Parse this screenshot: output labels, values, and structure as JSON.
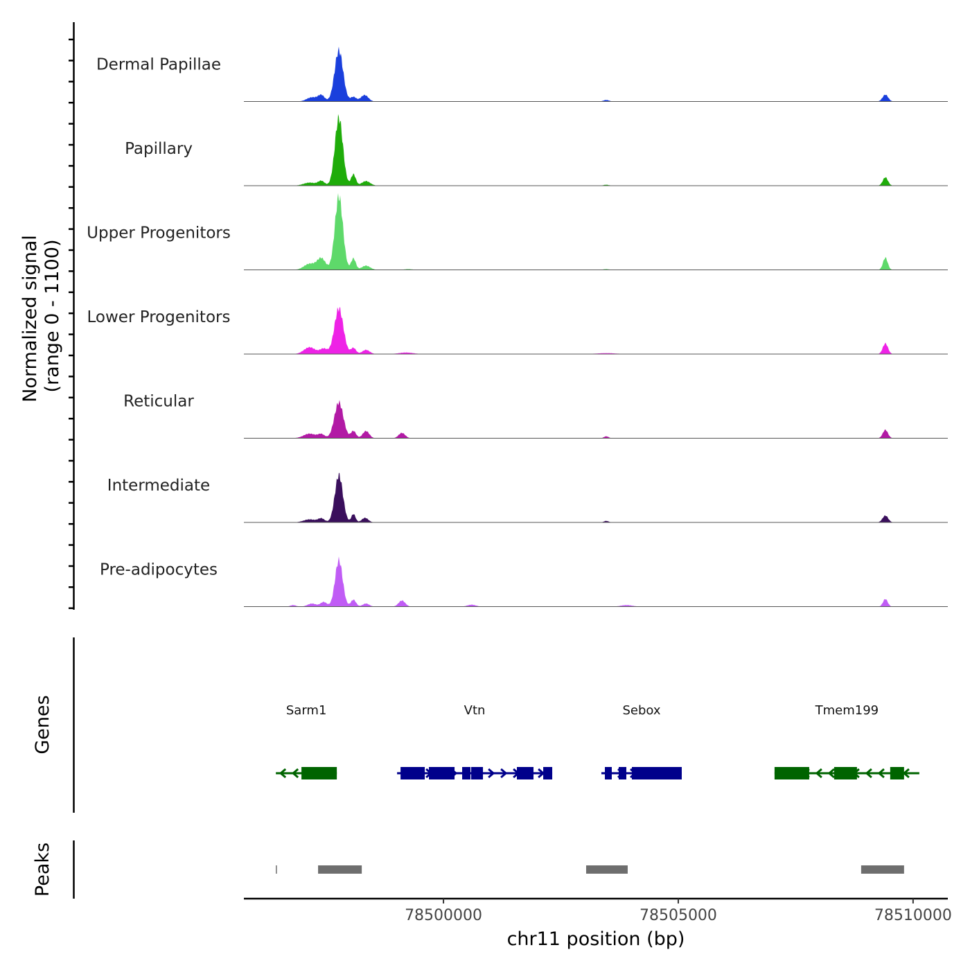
{
  "chart_data": {
    "type": "area",
    "title": "",
    "ylabel": "Normalized signal",
    "ylabel_range": "(range 0 - 1100)",
    "ylim": [
      0,
      1100
    ],
    "xlabel": "chr11 position (bp)",
    "xlim": [
      78495750,
      78510740
    ],
    "xticks": [
      78500000,
      78505000,
      78510000
    ],
    "xtick_labels": [
      "78500000",
      "78505000",
      "78510000"
    ],
    "tracks": [
      {
        "name": "Dermal Papillae",
        "color": "#1a3fdc",
        "peaks": [
          [
            78497773,
            670,
            90
          ],
          [
            78497198,
            55,
            110
          ],
          [
            78497400,
            80,
            70
          ],
          [
            78498083,
            60,
            60
          ],
          [
            78498320,
            85,
            80
          ],
          [
            78503466,
            20,
            60
          ],
          [
            78509410,
            90,
            60
          ]
        ]
      },
      {
        "name": "Papillary",
        "color": "#1fac0a",
        "peaks": [
          [
            78497773,
            890,
            85
          ],
          [
            78497150,
            40,
            130
          ],
          [
            78497400,
            60,
            70
          ],
          [
            78498083,
            150,
            50
          ],
          [
            78498350,
            60,
            90
          ],
          [
            78503466,
            12,
            60
          ],
          [
            78509410,
            110,
            55
          ]
        ]
      },
      {
        "name": "Upper Progenitors",
        "color": "#5ed96a",
        "peaks": [
          [
            78497773,
            965,
            85
          ],
          [
            78497150,
            80,
            120
          ],
          [
            78497400,
            150,
            90
          ],
          [
            78498083,
            150,
            50
          ],
          [
            78498350,
            55,
            90
          ],
          [
            78499250,
            10,
            80
          ],
          [
            78503466,
            10,
            60
          ],
          [
            78509410,
            160,
            50
          ]
        ]
      },
      {
        "name": "Lower Progenitors",
        "color": "#ee22e6",
        "peaks": [
          [
            78497773,
            600,
            95
          ],
          [
            78497150,
            90,
            120
          ],
          [
            78497450,
            70,
            80
          ],
          [
            78498083,
            80,
            55
          ],
          [
            78498350,
            55,
            80
          ],
          [
            78499200,
            20,
            150
          ],
          [
            78503466,
            12,
            200
          ],
          [
            78509410,
            140,
            55
          ]
        ]
      },
      {
        "name": "Reticular",
        "color": "#b21aa5",
        "peaks": [
          [
            78497773,
            470,
            95
          ],
          [
            78497150,
            60,
            130
          ],
          [
            78497400,
            50,
            70
          ],
          [
            78498083,
            95,
            55
          ],
          [
            78498350,
            95,
            70
          ],
          [
            78499115,
            70,
            70
          ],
          [
            78503466,
            25,
            50
          ],
          [
            78509410,
            110,
            55
          ]
        ]
      },
      {
        "name": "Intermediate",
        "color": "#3a0f5c",
        "peaks": [
          [
            78497773,
            620,
            85
          ],
          [
            78497150,
            40,
            130
          ],
          [
            78497400,
            50,
            70
          ],
          [
            78498083,
            110,
            45
          ],
          [
            78498330,
            60,
            70
          ],
          [
            78503466,
            20,
            50
          ],
          [
            78509410,
            90,
            60
          ]
        ]
      },
      {
        "name": "Pre-adipocytes",
        "color": "#c05cf5",
        "peaks": [
          [
            78497773,
            610,
            80
          ],
          [
            78496800,
            20,
            60
          ],
          [
            78497200,
            40,
            90
          ],
          [
            78497450,
            60,
            70
          ],
          [
            78498083,
            90,
            55
          ],
          [
            78498350,
            40,
            70
          ],
          [
            78499115,
            80,
            70
          ],
          [
            78500600,
            25,
            90
          ],
          [
            78503900,
            20,
            120
          ],
          [
            78509410,
            100,
            50
          ]
        ]
      }
    ],
    "genes_label": "Genes",
    "genes": [
      {
        "name": "Sarm1",
        "strand": "-",
        "color": "#006400",
        "start": 78496431,
        "end": 78497729,
        "exons": [
          [
            78496976,
            78497729
          ]
        ]
      },
      {
        "name": "Vtn",
        "strand": "+",
        "color": "#00008b",
        "start": 78499012,
        "end": 78502316,
        "exons": [
          [
            78499086,
            78499602
          ],
          [
            78499690,
            78500236
          ],
          [
            78500398,
            78500575
          ],
          [
            78500590,
            78500841
          ],
          [
            78501563,
            78501917
          ],
          [
            78502124,
            78502316
          ]
        ]
      },
      {
        "name": "Sebox",
        "strand": "+",
        "color": "#00008b",
        "start": 78503363,
        "end": 78505074,
        "exons": [
          [
            78503437,
            78503584
          ],
          [
            78503732,
            78503894
          ],
          [
            78504012,
            78505074
          ]
        ]
      },
      {
        "name": "Tmem199",
        "strand": "-",
        "color": "#006400",
        "start": 78507050,
        "end": 78510133,
        "exons": [
          [
            78507050,
            78507788
          ],
          [
            78508319,
            78508805
          ],
          [
            78509513,
            78509808
          ]
        ]
      }
    ],
    "peaks_label": "Peaks",
    "peak_color": "#6e6e6e",
    "peak_regions": [
      [
        78496431,
        78496450
      ],
      [
        78497330,
        78498260
      ],
      [
        78503038,
        78503923
      ],
      [
        78508894,
        78509808
      ]
    ]
  }
}
